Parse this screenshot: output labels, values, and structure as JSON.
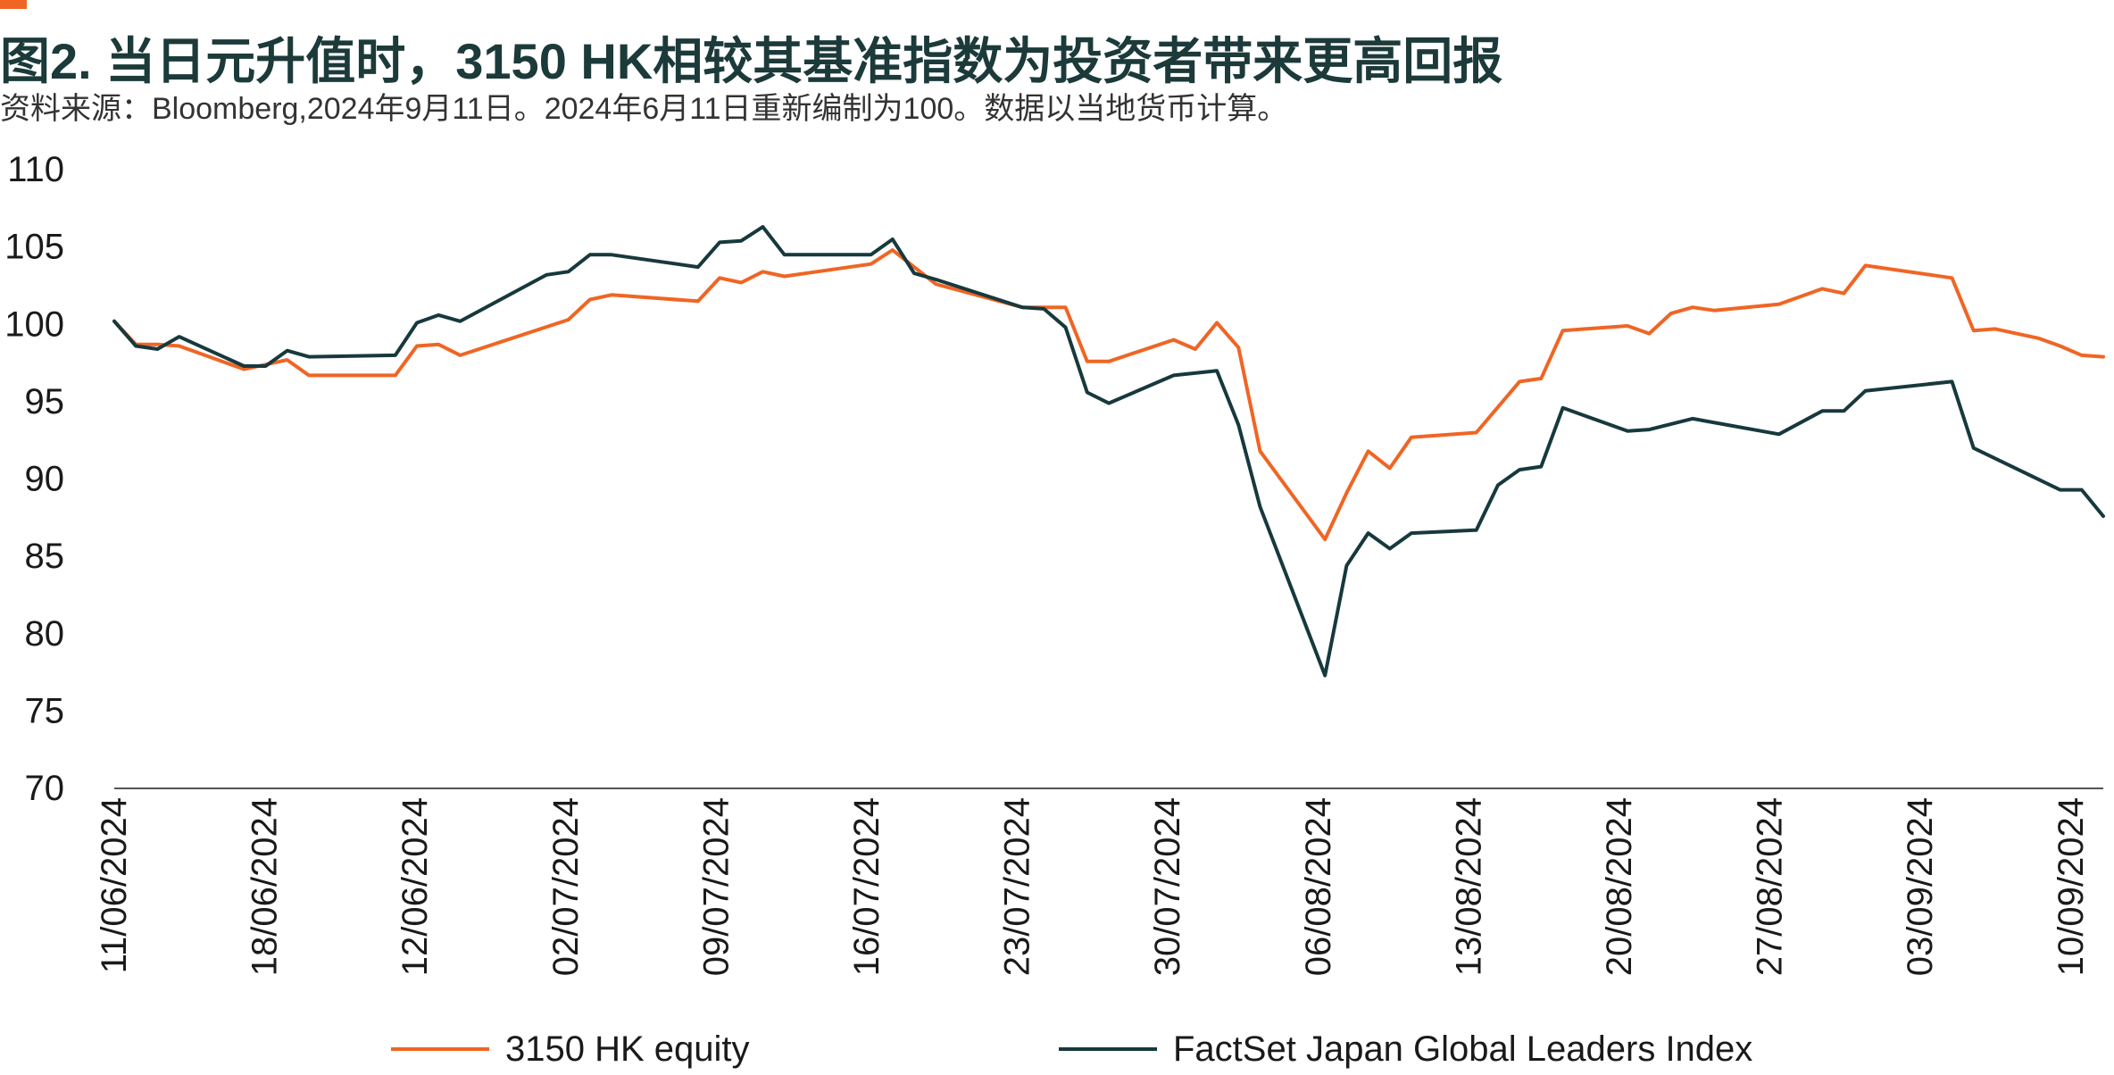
{
  "header": {
    "title": "图2. 当日元升值时，3150 HK相较其基准指数为投资者带来更高回报",
    "subtitle": "资料来源：Bloomberg,2024年9月11日。2024年6月11日重新编制为100。数据以当地货币计算。"
  },
  "colors": {
    "accent": "#f06524",
    "dark": "#17393d",
    "axis": "#555555"
  },
  "chart_data": {
    "type": "line",
    "title": "图2. 当日元升值时，3150 HK相较其基准指数为投资者带来更高回报",
    "xlabel": "",
    "ylabel": "",
    "ylim": [
      70,
      110
    ],
    "yticks": [
      "110",
      "105",
      "100",
      "95",
      "90",
      "85",
      "80",
      "75",
      "70"
    ],
    "xlim": [
      "2024-06-11",
      "2024-09-11"
    ],
    "xtick_labels": [
      "11/06/2024",
      "18/06/2024",
      "12/06/2024",
      "02/07/2024",
      "09/07/2024",
      "16/07/2024",
      "23/07/2024",
      "30/07/2024",
      "06/08/2024",
      "13/08/2024",
      "20/08/2024",
      "27/08/2024",
      "03/09/2024",
      "10/09/2024"
    ],
    "grid": false,
    "legend_position": "bottom",
    "series": [
      {
        "name": "3150 HK equity",
        "color": "#f06524",
        "points": [
          [
            "2024-06-11",
            100.2
          ],
          [
            "2024-06-12",
            98.7
          ],
          [
            "2024-06-13",
            98.7
          ],
          [
            "2024-06-14",
            98.6
          ],
          [
            "2024-06-17",
            97.1
          ],
          [
            "2024-06-18",
            97.4
          ],
          [
            "2024-06-19",
            97.7
          ],
          [
            "2024-06-20",
            96.7
          ],
          [
            "2024-06-24",
            96.7
          ],
          [
            "2024-06-25",
            98.6
          ],
          [
            "2024-06-26",
            98.7
          ],
          [
            "2024-06-27",
            98.0
          ],
          [
            "2024-07-02",
            100.3
          ],
          [
            "2024-07-03",
            101.6
          ],
          [
            "2024-07-04",
            101.9
          ],
          [
            "2024-07-08",
            101.5
          ],
          [
            "2024-07-09",
            103.0
          ],
          [
            "2024-07-10",
            102.7
          ],
          [
            "2024-07-11",
            103.4
          ],
          [
            "2024-07-12",
            103.1
          ],
          [
            "2024-07-16",
            103.9
          ],
          [
            "2024-07-17",
            104.8
          ],
          [
            "2024-07-18",
            103.7
          ],
          [
            "2024-07-19",
            102.6
          ],
          [
            "2024-07-23",
            101.1
          ],
          [
            "2024-07-24",
            101.1
          ],
          [
            "2024-07-25",
            101.1
          ],
          [
            "2024-07-26",
            97.6
          ],
          [
            "2024-07-27",
            97.6
          ],
          [
            "2024-07-30",
            99.0
          ],
          [
            "2024-07-31",
            98.4
          ],
          [
            "2024-08-01",
            100.1
          ],
          [
            "2024-08-02",
            98.5
          ],
          [
            "2024-08-03",
            91.8
          ],
          [
            "2024-08-06",
            86.1
          ],
          [
            "2024-08-07",
            89.1
          ],
          [
            "2024-08-08",
            91.8
          ],
          [
            "2024-08-09",
            90.7
          ],
          [
            "2024-08-10",
            92.7
          ],
          [
            "2024-08-13",
            93.0
          ],
          [
            "2024-08-15",
            96.3
          ],
          [
            "2024-08-16",
            96.5
          ],
          [
            "2024-08-17",
            99.6
          ],
          [
            "2024-08-20",
            99.9
          ],
          [
            "2024-08-21",
            99.4
          ],
          [
            "2024-08-22",
            100.7
          ],
          [
            "2024-08-23",
            101.1
          ],
          [
            "2024-08-24",
            100.9
          ],
          [
            "2024-08-27",
            101.3
          ],
          [
            "2024-08-29",
            102.3
          ],
          [
            "2024-08-30",
            102.0
          ],
          [
            "2024-08-31",
            103.8
          ],
          [
            "2024-09-03",
            103.2
          ],
          [
            "2024-09-04",
            103.0
          ],
          [
            "2024-09-05",
            99.6
          ],
          [
            "2024-09-06",
            99.7
          ],
          [
            "2024-09-08",
            99.1
          ],
          [
            "2024-09-09",
            98.6
          ],
          [
            "2024-09-10",
            98.0
          ],
          [
            "2024-09-11",
            97.9
          ]
        ]
      },
      {
        "name": "FactSet Japan Global Leaders Index",
        "color": "#17393d",
        "points": [
          [
            "2024-06-11",
            100.2
          ],
          [
            "2024-06-12",
            98.6
          ],
          [
            "2024-06-13",
            98.4
          ],
          [
            "2024-06-14",
            99.2
          ],
          [
            "2024-06-17",
            97.3
          ],
          [
            "2024-06-18",
            97.3
          ],
          [
            "2024-06-19",
            98.3
          ],
          [
            "2024-06-20",
            97.9
          ],
          [
            "2024-06-24",
            98.0
          ],
          [
            "2024-06-25",
            100.1
          ],
          [
            "2024-06-26",
            100.6
          ],
          [
            "2024-06-27",
            100.2
          ],
          [
            "2024-07-01",
            103.2
          ],
          [
            "2024-07-02",
            103.4
          ],
          [
            "2024-07-03",
            104.5
          ],
          [
            "2024-07-04",
            104.5
          ],
          [
            "2024-07-08",
            103.7
          ],
          [
            "2024-07-09",
            105.3
          ],
          [
            "2024-07-10",
            105.4
          ],
          [
            "2024-07-11",
            106.3
          ],
          [
            "2024-07-12",
            104.5
          ],
          [
            "2024-07-16",
            104.5
          ],
          [
            "2024-07-17",
            105.5
          ],
          [
            "2024-07-18",
            103.3
          ],
          [
            "2024-07-19",
            102.9
          ],
          [
            "2024-07-23",
            101.1
          ],
          [
            "2024-07-24",
            101.0
          ],
          [
            "2024-07-25",
            99.8
          ],
          [
            "2024-07-26",
            95.6
          ],
          [
            "2024-07-27",
            94.9
          ],
          [
            "2024-07-30",
            96.7
          ],
          [
            "2024-08-01",
            97.0
          ],
          [
            "2024-08-02",
            93.5
          ],
          [
            "2024-08-03",
            88.2
          ],
          [
            "2024-08-06",
            77.3
          ],
          [
            "2024-08-07",
            84.4
          ],
          [
            "2024-08-08",
            86.5
          ],
          [
            "2024-08-09",
            85.5
          ],
          [
            "2024-08-10",
            86.5
          ],
          [
            "2024-08-13",
            86.7
          ],
          [
            "2024-08-14",
            89.6
          ],
          [
            "2024-08-15",
            90.6
          ],
          [
            "2024-08-16",
            90.8
          ],
          [
            "2024-08-17",
            94.6
          ],
          [
            "2024-08-20",
            93.1
          ],
          [
            "2024-08-21",
            93.2
          ],
          [
            "2024-08-23",
            93.9
          ],
          [
            "2024-08-27",
            92.9
          ],
          [
            "2024-08-29",
            94.4
          ],
          [
            "2024-08-30",
            94.4
          ],
          [
            "2024-08-31",
            95.7
          ],
          [
            "2024-09-04",
            96.3
          ],
          [
            "2024-09-05",
            92.0
          ],
          [
            "2024-09-09",
            89.3
          ],
          [
            "2024-09-10",
            89.3
          ],
          [
            "2024-09-11",
            87.6
          ]
        ]
      }
    ]
  },
  "legend": {
    "items": [
      {
        "label": "3150 HK equity"
      },
      {
        "label": "FactSet Japan Global Leaders Index"
      }
    ]
  }
}
